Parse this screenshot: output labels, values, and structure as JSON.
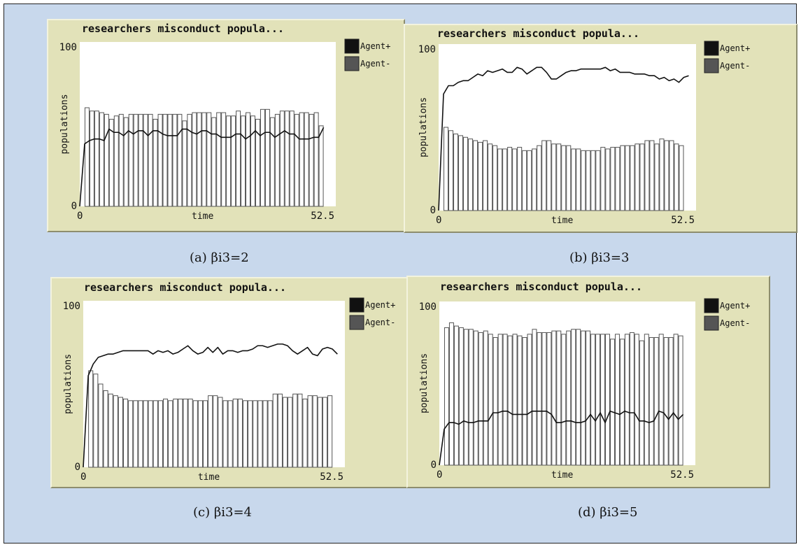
{
  "chart_data": [
    {
      "type": "bar+line",
      "title": "researchers misconduct popula...",
      "caption": "(a) βi3=2",
      "xlabel": "time",
      "ylabel": "populations",
      "xlim": [
        0,
        52.5
      ],
      "ylim": [
        0,
        100
      ],
      "x_ticks": [
        "0",
        "52.5"
      ],
      "y_ticks": [
        "0",
        "100"
      ],
      "legend": [
        {
          "name": "Agent+",
          "color": "#111111"
        },
        {
          "name": "Agent-",
          "color": "#555555"
        }
      ],
      "series": [
        {
          "name": "Agent+",
          "style": "line",
          "values": [
            0,
            38,
            40,
            41,
            41,
            40,
            47,
            45,
            45,
            43,
            46,
            44,
            46,
            46,
            43,
            46,
            46,
            44,
            43,
            43,
            43,
            47,
            47,
            45,
            44,
            46,
            46,
            44,
            44,
            42,
            42,
            42,
            44,
            44,
            41,
            43,
            46,
            43,
            45,
            45,
            42,
            44,
            46,
            44,
            44,
            41,
            41,
            41,
            42,
            42,
            48
          ]
        },
        {
          "name": "Agent-",
          "style": "bar",
          "values": [
            0,
            60,
            58,
            58,
            57,
            56,
            53,
            55,
            56,
            54,
            56,
            56,
            56,
            56,
            56,
            53,
            56,
            56,
            56,
            56,
            56,
            52,
            56,
            57,
            57,
            57,
            57,
            54,
            57,
            57,
            55,
            55,
            58,
            55,
            57,
            55,
            53,
            59,
            59,
            54,
            56,
            58,
            58,
            58,
            56,
            57,
            57,
            56,
            57,
            49
          ]
        }
      ]
    },
    {
      "type": "bar+line",
      "title": "researchers misconduct popula...",
      "caption": "(b) βi3=3",
      "xlabel": "time",
      "ylabel": "populations",
      "xlim": [
        0,
        52.5
      ],
      "ylim": [
        0,
        100
      ],
      "x_ticks": [
        "0",
        "52.5"
      ],
      "y_ticks": [
        "0",
        "100"
      ],
      "legend": [
        {
          "name": "Agent+",
          "color": "#111111"
        },
        {
          "name": "Agent-",
          "color": "#555555"
        }
      ],
      "series": [
        {
          "name": "Agent+",
          "style": "line",
          "values": [
            0,
            70,
            75,
            75,
            77,
            78,
            78,
            80,
            82,
            81,
            84,
            83,
            84,
            85,
            83,
            83,
            86,
            85,
            82,
            84,
            86,
            86,
            83,
            79,
            79,
            81,
            83,
            84,
            84,
            85,
            85,
            85,
            85,
            85,
            86,
            84,
            85,
            83,
            83,
            83,
            82,
            82,
            82,
            81,
            81,
            79,
            80,
            78,
            79,
            77,
            80,
            81
          ]
        },
        {
          "name": "Agent-",
          "style": "bar",
          "values": [
            0,
            50,
            48,
            46,
            45,
            44,
            43,
            42,
            41,
            42,
            40,
            39,
            37,
            37,
            38,
            37,
            38,
            36,
            36,
            37,
            39,
            42,
            42,
            40,
            40,
            39,
            39,
            37,
            37,
            36,
            36,
            36,
            36,
            38,
            37,
            38,
            38,
            39,
            39,
            39,
            40,
            40,
            42,
            42,
            40,
            43,
            42,
            42,
            40,
            39
          ]
        }
      ]
    },
    {
      "type": "bar+line",
      "title": "researchers misconduct popula...",
      "caption": "(c) βi3=4",
      "xlabel": "time",
      "ylabel": "populations",
      "xlim": [
        0,
        52.5
      ],
      "ylim": [
        0,
        100
      ],
      "x_ticks": [
        "0",
        "52.5"
      ],
      "y_ticks": [
        "0",
        "100"
      ],
      "legend": [
        {
          "name": "Agent+",
          "color": "#111111"
        },
        {
          "name": "Agent-",
          "color": "#555555"
        }
      ],
      "series": [
        {
          "name": "Agent+",
          "style": "line",
          "values": [
            0,
            55,
            62,
            66,
            67,
            68,
            68,
            69,
            70,
            70,
            70,
            70,
            70,
            70,
            68,
            70,
            69,
            70,
            68,
            69,
            71,
            73,
            70,
            68,
            69,
            72,
            69,
            72,
            68,
            70,
            70,
            69,
            70,
            70,
            71,
            73,
            73,
            72,
            73,
            74,
            74,
            73,
            70,
            68,
            70,
            72,
            68,
            67,
            71,
            72,
            71,
            68
          ]
        },
        {
          "name": "Agent-",
          "style": "bar",
          "values": [
            0,
            58,
            56,
            50,
            46,
            44,
            43,
            42,
            41,
            40,
            40,
            40,
            40,
            40,
            40,
            40,
            41,
            40,
            41,
            41,
            41,
            41,
            40,
            40,
            40,
            43,
            43,
            42,
            40,
            40,
            41,
            41,
            40,
            40,
            40,
            40,
            40,
            40,
            44,
            44,
            42,
            42,
            44,
            44,
            41,
            43,
            43,
            42,
            42,
            43
          ]
        }
      ]
    },
    {
      "type": "bar+line",
      "title": "researchers misconduct popula...",
      "caption": "(d) βi3=5",
      "xlabel": "time",
      "ylabel": "populations",
      "xlim": [
        0,
        52.5
      ],
      "ylim": [
        0,
        100
      ],
      "x_ticks": [
        "0",
        "52.5"
      ],
      "y_ticks": [
        "0",
        "100"
      ],
      "legend": [
        {
          "name": "Agent+",
          "color": "#111111"
        },
        {
          "name": "Agent-",
          "color": "#555555"
        }
      ],
      "series": [
        {
          "name": "Agent+",
          "style": "line",
          "values": [
            0,
            22,
            26,
            26,
            25,
            27,
            26,
            26,
            27,
            27,
            27,
            32,
            32,
            33,
            33,
            31,
            31,
            31,
            31,
            33,
            33,
            33,
            33,
            31,
            26,
            26,
            27,
            27,
            26,
            26,
            27,
            31,
            27,
            32,
            26,
            33,
            32,
            31,
            33,
            32,
            32,
            27,
            27,
            26,
            27,
            33,
            32,
            28,
            32,
            28,
            31
          ]
        },
        {
          "name": "Agent-",
          "style": "bar",
          "values": [
            0,
            84,
            87,
            85,
            84,
            83,
            83,
            82,
            81,
            82,
            80,
            78,
            80,
            80,
            79,
            80,
            79,
            78,
            80,
            83,
            81,
            81,
            81,
            82,
            82,
            80,
            82,
            83,
            83,
            82,
            82,
            80,
            80,
            80,
            80,
            77,
            80,
            77,
            80,
            81,
            80,
            76,
            80,
            78,
            78,
            80,
            78,
            78,
            80,
            79
          ]
        }
      ]
    }
  ]
}
